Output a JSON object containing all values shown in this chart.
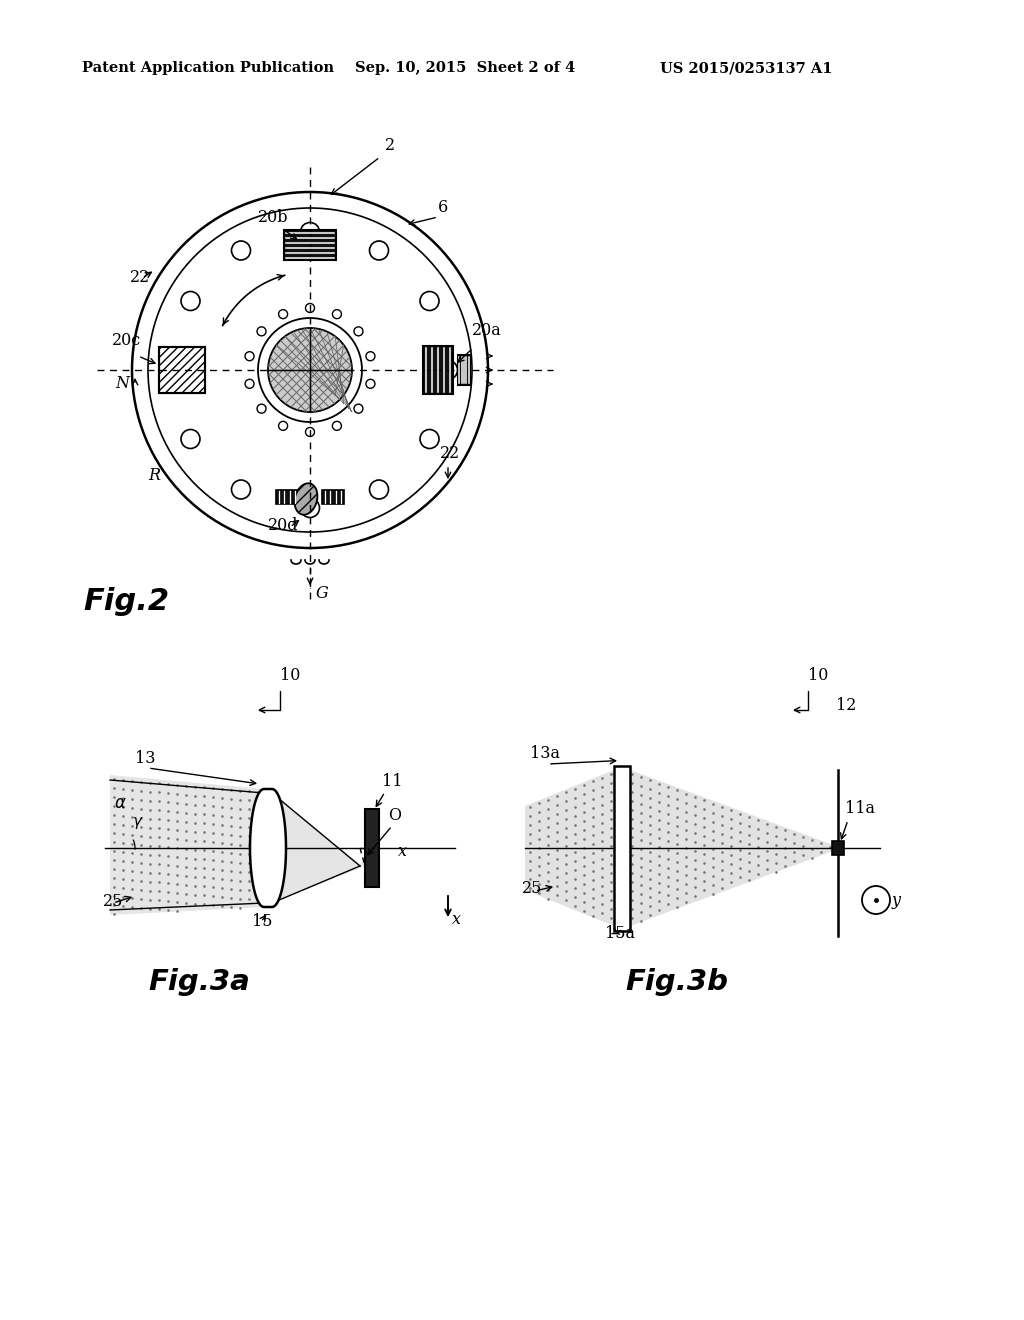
{
  "bg_color": "#ffffff",
  "header_left": "Patent Application Publication",
  "header_mid": "Sep. 10, 2015  Sheet 2 of 4",
  "header_right": "US 2015/0253137 A1",
  "line_color": "#000000"
}
